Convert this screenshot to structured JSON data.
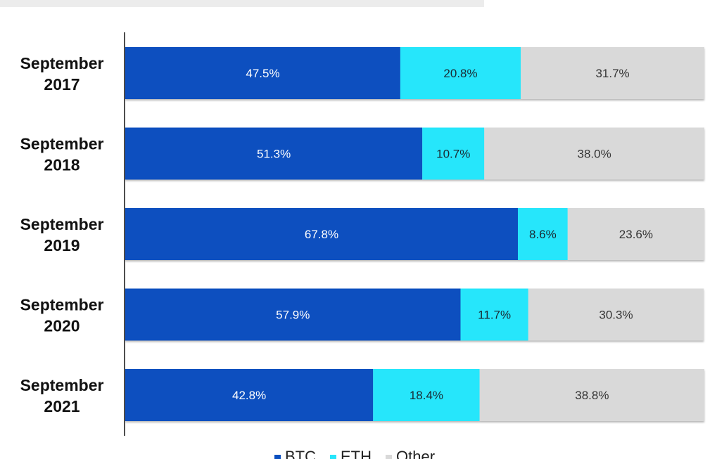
{
  "chart_data": {
    "type": "bar",
    "orientation": "horizontal",
    "stacked": true,
    "title": "",
    "xlabel": "",
    "ylabel": "",
    "xlim": [
      0,
      100
    ],
    "categories": [
      [
        "September",
        "2017"
      ],
      [
        "September",
        "2018"
      ],
      [
        "September",
        "2019"
      ],
      [
        "September",
        "2020"
      ],
      [
        "September",
        "2021"
      ]
    ],
    "series": [
      {
        "name": "BTC",
        "color": "#0b4fbf",
        "label_color": "#ffffff",
        "values": [
          47.5,
          51.3,
          67.8,
          57.9,
          42.8
        ],
        "labels": [
          "47.5%",
          "51.3%",
          "67.8%",
          "57.9%",
          "42.8%"
        ]
      },
      {
        "name": "ETH",
        "color": "#27e6fb",
        "label_color": "#1a2a33",
        "values": [
          20.8,
          10.7,
          8.6,
          11.7,
          18.4
        ],
        "labels": [
          "20.8%",
          "10.7%",
          "8.6%",
          "11.7%",
          "18.4%"
        ]
      },
      {
        "name": "Other",
        "color": "#d9d9d9",
        "label_color": "#333333",
        "values": [
          31.7,
          38.0,
          23.6,
          30.3,
          38.8
        ],
        "labels": [
          "31.7%",
          "38.0%",
          "23.6%",
          "30.3%",
          "38.8%"
        ]
      }
    ],
    "legend_position": "bottom-center",
    "grid": false
  }
}
